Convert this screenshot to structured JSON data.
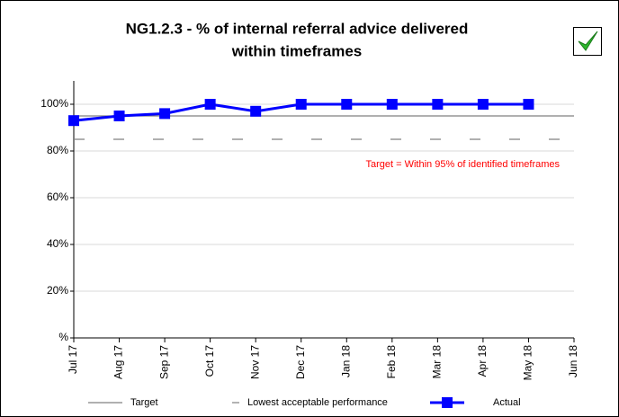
{
  "chart_data": {
    "type": "line",
    "title": [
      "NG1.2.3 - % of internal referral advice delivered",
      "within timeframes"
    ],
    "annotation": "Target = Within 95% of identified timeframes",
    "categories": [
      "Jul 17",
      "Aug 17",
      "Sep 17",
      "Oct 17",
      "Nov 17",
      "Dec 17",
      "Jan 18",
      "Feb 18",
      "Mar 18",
      "Apr 18",
      "May 18",
      "Jun 18"
    ],
    "series": [
      {
        "name": "Target",
        "color": "#808080",
        "style": "solid",
        "values": [
          95,
          95,
          95,
          95,
          95,
          95,
          95,
          95,
          95,
          95,
          95,
          95
        ]
      },
      {
        "name": "Lowest acceptable performance",
        "color": "#808080",
        "style": "dashed",
        "values": [
          85,
          85,
          85,
          85,
          85,
          85,
          85,
          85,
          85,
          85,
          85,
          85
        ]
      },
      {
        "name": "Actual",
        "color": "#0000ff",
        "style": "marker",
        "values": [
          93,
          95,
          96,
          100,
          97,
          100,
          100,
          100,
          100,
          100,
          100,
          null
        ]
      }
    ],
    "ylim": [
      0,
      110
    ],
    "yticks": [
      {
        "value": 0,
        "label": "%"
      },
      {
        "value": 20,
        "label": "20%"
      },
      {
        "value": 40,
        "label": "40%"
      },
      {
        "value": 60,
        "label": "60%"
      },
      {
        "value": 80,
        "label": "80%"
      },
      {
        "value": 100,
        "label": "100%"
      }
    ],
    "grid": true
  }
}
